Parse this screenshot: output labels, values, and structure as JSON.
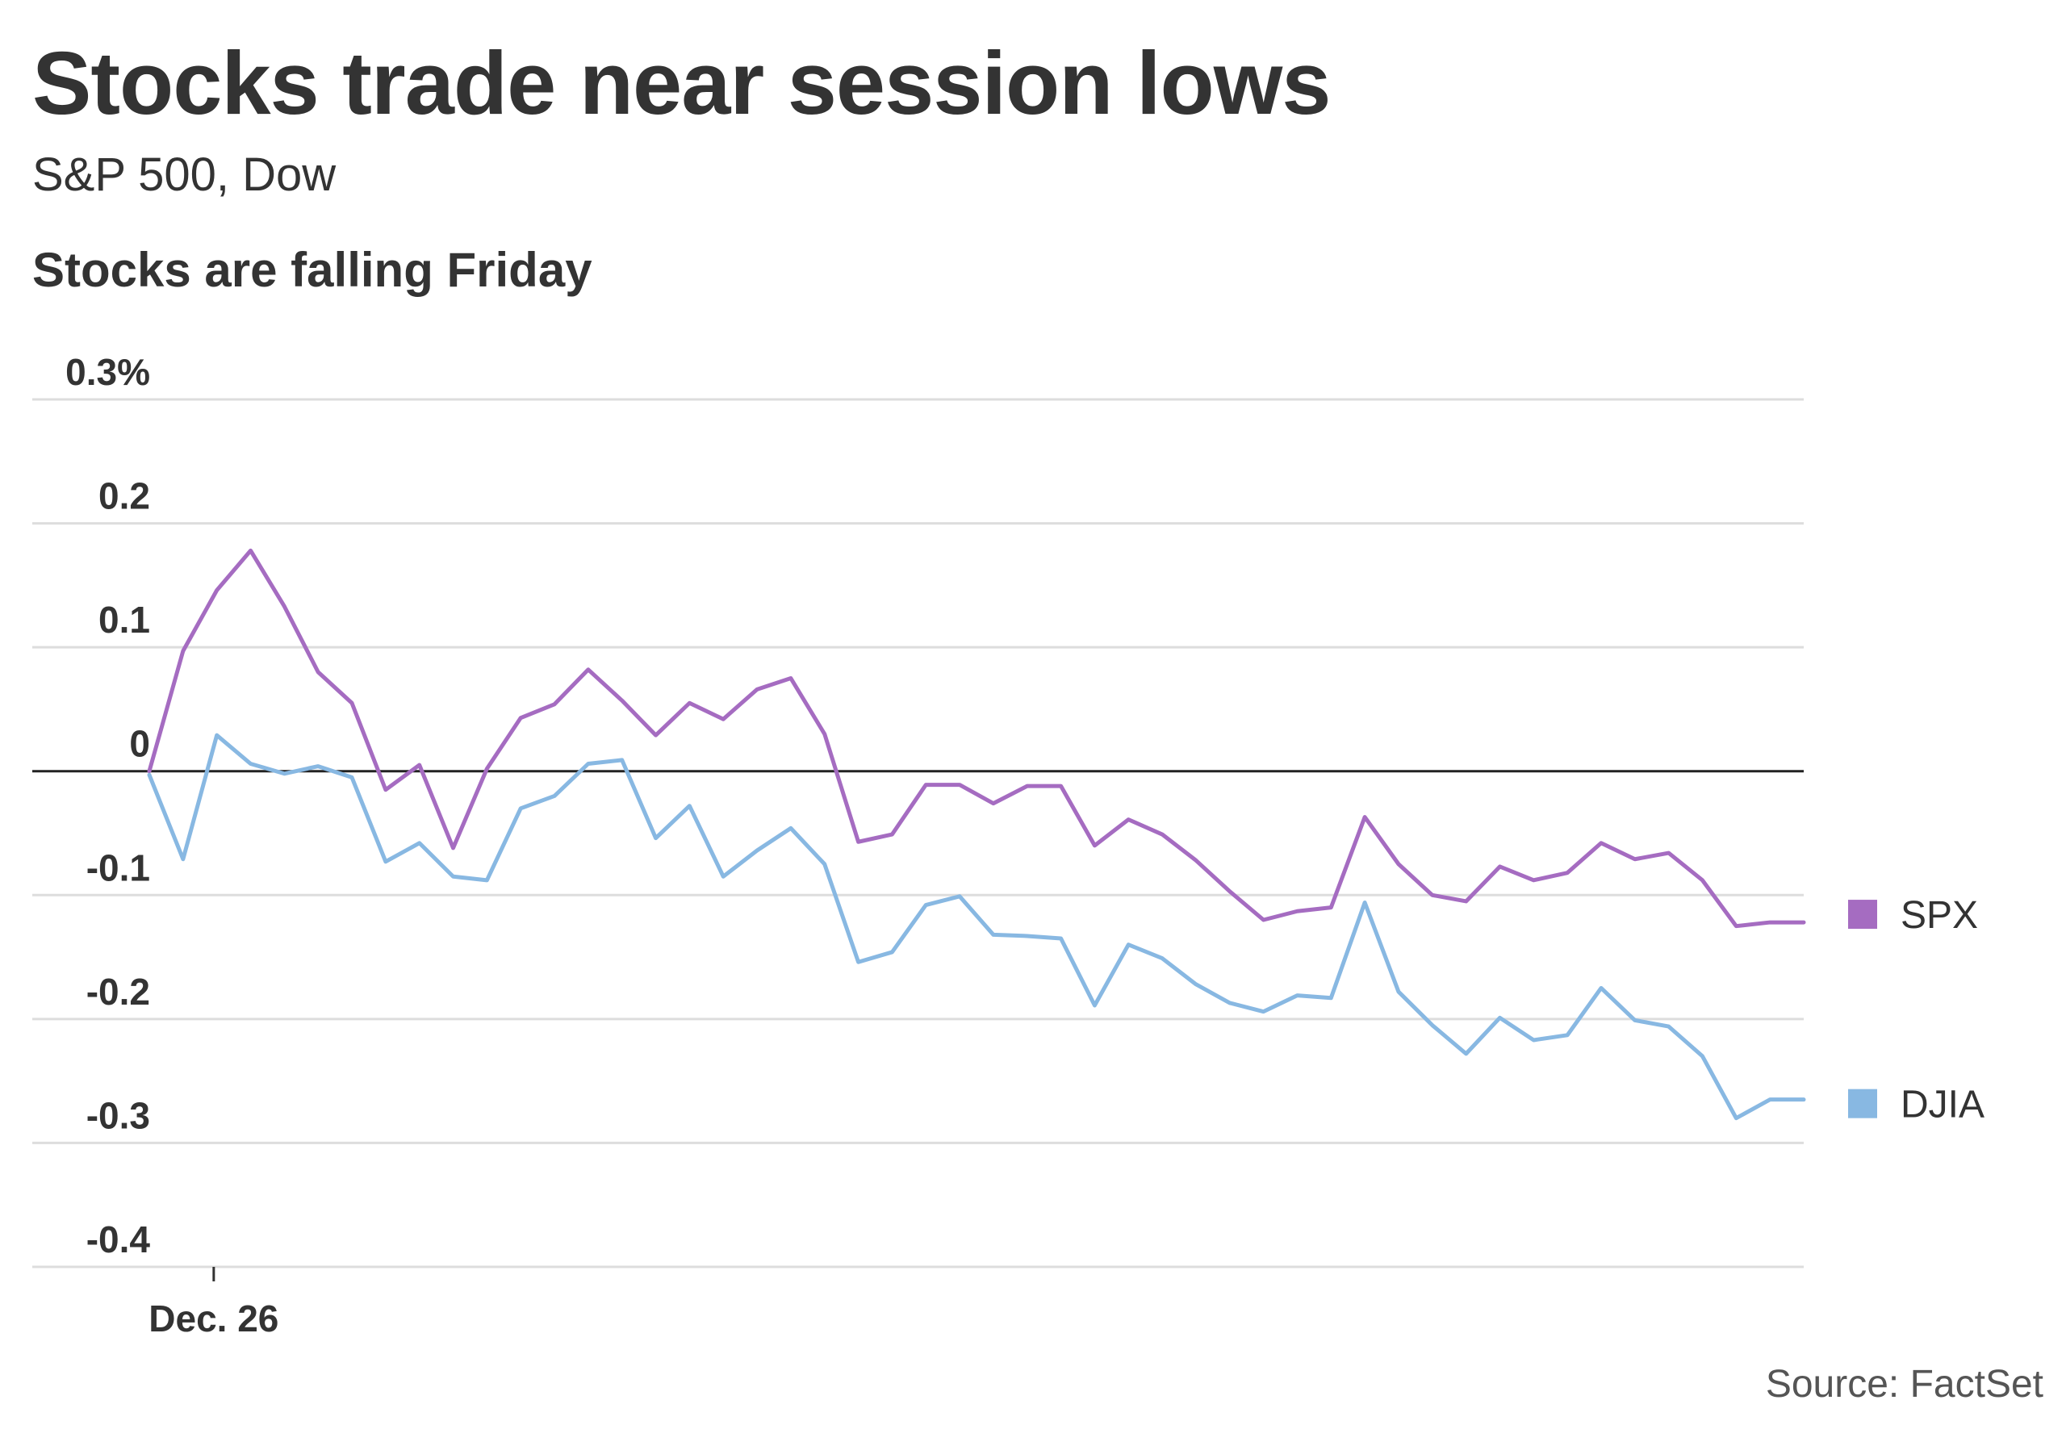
{
  "header": {
    "title": "Stocks trade near session lows",
    "subtitle": "S&P 500, Dow",
    "chart_heading": "Stocks are falling Friday"
  },
  "footer": {
    "source": "Source: FactSet"
  },
  "colors": {
    "spx": "#a56cc1",
    "djia": "#88b8e2",
    "grid": "#dddddd",
    "zero_line": "#222222"
  },
  "chart_data": {
    "type": "line",
    "title": "Stocks are falling Friday",
    "ylim": [
      -0.4,
      0.3
    ],
    "y_ticks": [
      0.3,
      0.2,
      0.1,
      0,
      -0.1,
      -0.2,
      -0.3,
      -0.4
    ],
    "y_tick_labels": [
      "0.3%",
      "0.2",
      "0.1",
      "0",
      "-0.1",
      "-0.2",
      "-0.3",
      "-0.4"
    ],
    "x_tick_labels": [
      "Dec. 26"
    ],
    "x_tick_positions": [
      1
    ],
    "x": [
      0,
      1,
      2,
      3,
      4,
      5,
      6,
      7,
      8,
      9,
      10,
      11,
      12,
      13,
      14,
      15,
      16,
      17,
      18,
      19,
      20,
      21,
      22,
      23,
      24,
      25,
      26,
      27,
      28,
      29,
      30,
      31,
      32,
      33,
      34,
      35,
      36,
      37,
      38,
      39,
      40,
      41,
      42,
      43,
      44,
      45,
      46,
      47,
      48,
      49
    ],
    "grid": true,
    "legend": "right",
    "series": [
      {
        "name": "SPX",
        "color": "#a56cc1",
        "values": [
          0.0,
          0.097,
          0.146,
          0.178,
          0.133,
          0.08,
          0.055,
          -0.015,
          0.005,
          -0.062,
          0.002,
          0.043,
          0.054,
          0.082,
          0.057,
          0.029,
          0.055,
          0.042,
          0.066,
          0.075,
          0.03,
          -0.057,
          -0.051,
          -0.011,
          -0.011,
          -0.026,
          -0.012,
          -0.012,
          -0.06,
          -0.039,
          -0.051,
          -0.072,
          -0.097,
          -0.12,
          -0.113,
          -0.11,
          -0.037,
          -0.075,
          -0.1,
          -0.105,
          -0.077,
          -0.088,
          -0.082,
          -0.058,
          -0.071,
          -0.066,
          -0.088,
          -0.125,
          -0.122,
          -0.122
        ]
      },
      {
        "name": "DJIA",
        "color": "#88b8e2",
        "values": [
          -0.003,
          -0.071,
          0.029,
          0.006,
          -0.002,
          0.004,
          -0.005,
          -0.073,
          -0.058,
          -0.085,
          -0.088,
          -0.03,
          -0.02,
          0.006,
          0.009,
          -0.054,
          -0.028,
          -0.085,
          -0.064,
          -0.046,
          -0.075,
          -0.154,
          -0.146,
          -0.108,
          -0.101,
          -0.132,
          -0.133,
          -0.135,
          -0.189,
          -0.14,
          -0.151,
          -0.172,
          -0.187,
          -0.194,
          -0.181,
          -0.183,
          -0.106,
          -0.178,
          -0.205,
          -0.228,
          -0.199,
          -0.217,
          -0.213,
          -0.175,
          -0.201,
          -0.206,
          -0.23,
          -0.28,
          -0.265,
          -0.265
        ]
      }
    ]
  }
}
